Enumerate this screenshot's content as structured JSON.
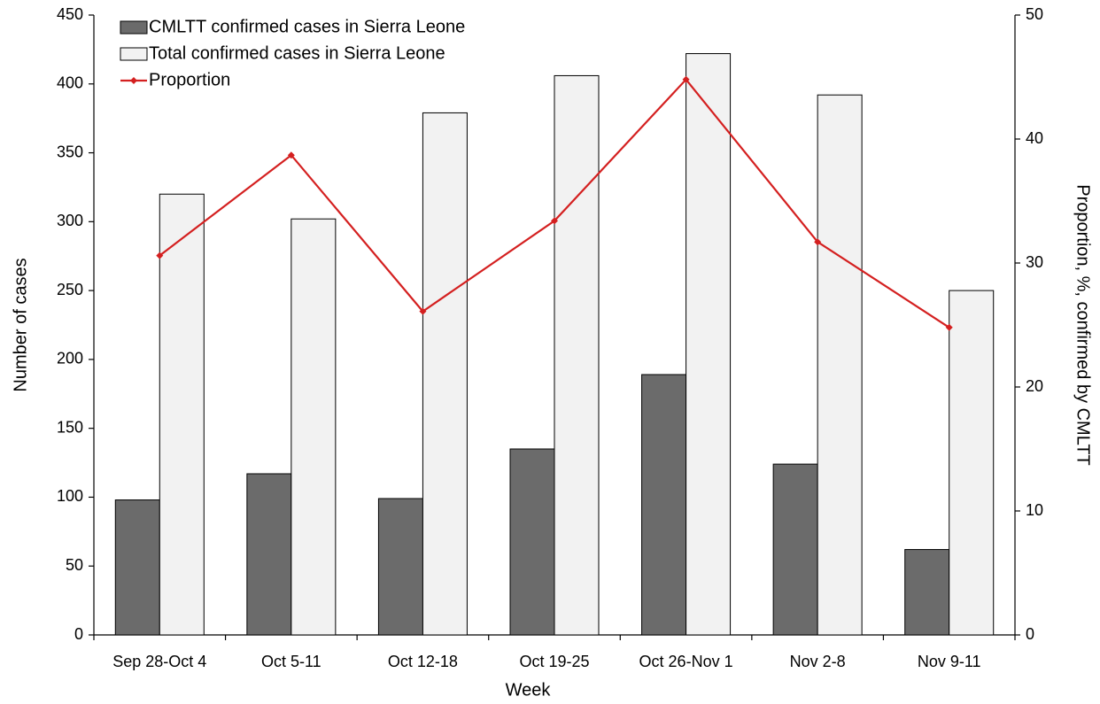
{
  "chart_data": {
    "type": "bar_line",
    "x_label": "Week",
    "y_label": "Number of cases",
    "y2_label": "Proportion, %, confirmed by CMLTT",
    "categories": [
      "Sep 28-Oct 4",
      "Oct 5-11",
      "Oct 12-18",
      "Oct 19-25",
      "Oct 26-Nov 1",
      "Nov 2-8",
      "Nov 9-11"
    ],
    "series": [
      {
        "name": "CMLTT confirmed cases in Sierra Leone",
        "type": "bar",
        "color": "#6b6b6b",
        "values": [
          98,
          117,
          99,
          135,
          189,
          124,
          62
        ]
      },
      {
        "name": "Total confirmed cases in Sierra Leone",
        "type": "bar",
        "color": "#f2f2f2",
        "values": [
          320,
          302,
          379,
          406,
          422,
          392,
          250
        ]
      },
      {
        "name": "Proportion",
        "type": "line",
        "axis": "y2",
        "color": "#d42020",
        "values": [
          30.6,
          38.7,
          26.1,
          33.4,
          44.8,
          31.7,
          24.8
        ]
      }
    ],
    "ylim": [
      0,
      450
    ],
    "yticks": [
      0,
      50,
      100,
      150,
      200,
      250,
      300,
      350,
      400,
      450
    ],
    "y2lim": [
      0,
      50
    ],
    "y2ticks": [
      0,
      10,
      20,
      30,
      40,
      50
    ],
    "grid": false,
    "legend": "upper-left"
  }
}
